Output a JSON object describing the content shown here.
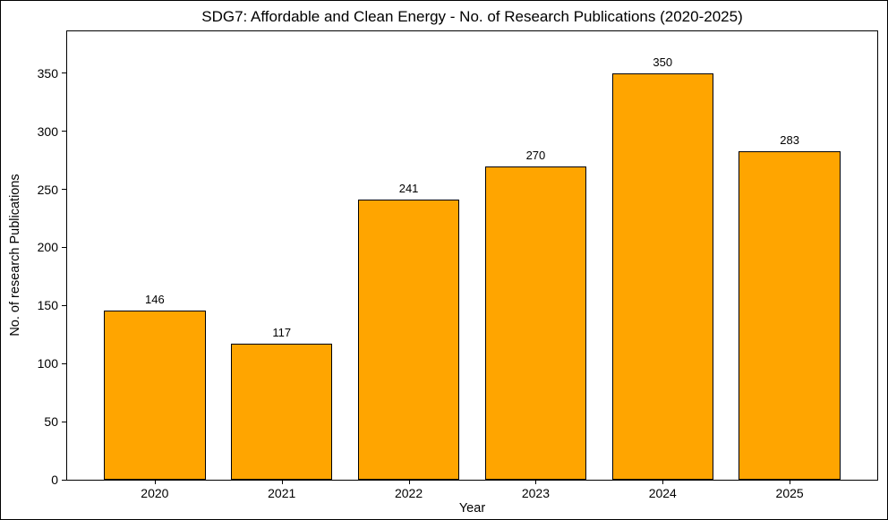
{
  "chart_data": {
    "type": "bar",
    "title": "SDG7: Affordable and Clean Energy - No. of Research Publications (2020-2025)",
    "xlabel": "Year",
    "ylabel": "No. of research Publications",
    "categories": [
      "2020",
      "2021",
      "2022",
      "2023",
      "2024",
      "2025"
    ],
    "values": [
      146,
      117,
      241,
      270,
      350,
      283
    ],
    "yticks": [
      0,
      50,
      100,
      150,
      200,
      250,
      300,
      350
    ],
    "ylim": [
      0,
      386
    ],
    "xlim": [
      -0.69,
      5.69
    ],
    "bar_width": 0.8,
    "bar_color": "#FFA500",
    "bar_edge_color": "#000000",
    "grid": false,
    "legend": "none",
    "plot_background": "#ffffff"
  }
}
